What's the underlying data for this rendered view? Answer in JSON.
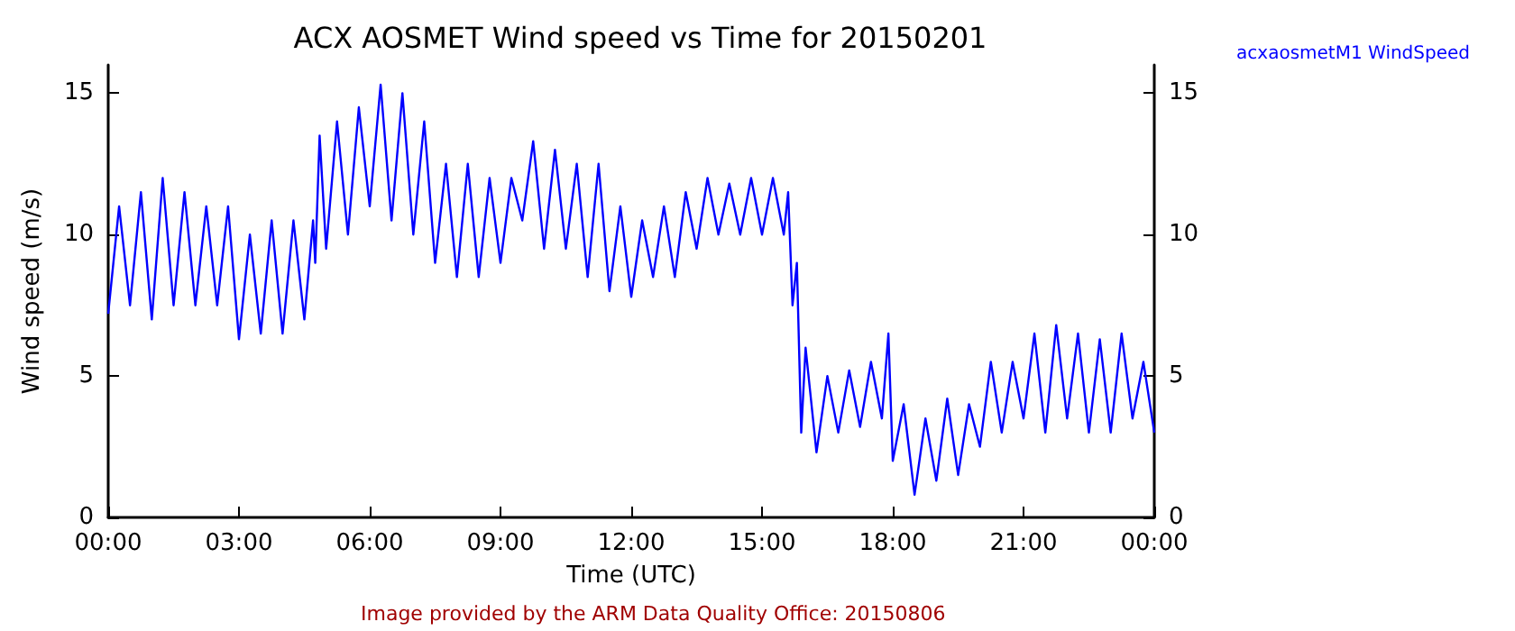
{
  "chart_data": {
    "type": "line",
    "title": "ACX AOSMET Wind speed vs Time for 20150201",
    "xlabel": "Time (UTC)",
    "ylabel": "Wind speed (m/s)",
    "annotations": [
      "Image provided by the ARM Data Quality Office: 20150806"
    ],
    "xlim": [
      0,
      24
    ],
    "xticks": [
      {
        "value": 0,
        "label": "00:00"
      },
      {
        "value": 3,
        "label": "03:00"
      },
      {
        "value": 6,
        "label": "06:00"
      },
      {
        "value": 9,
        "label": "09:00"
      },
      {
        "value": 12,
        "label": "12:00"
      },
      {
        "value": 15,
        "label": "15:00"
      },
      {
        "value": 18,
        "label": "18:00"
      },
      {
        "value": 21,
        "label": "21:00"
      },
      {
        "value": 24,
        "label": "00:00"
      }
    ],
    "ylim": [
      0,
      16
    ],
    "yticks": [
      0,
      5,
      10,
      15
    ],
    "y2lim": [
      0,
      16
    ],
    "y2ticks": [
      0,
      5,
      10,
      15
    ],
    "grid": false,
    "legend": "top right",
    "marker": "none",
    "line_style": "solid",
    "series": [
      {
        "name": "acxaosmetM1 WindSpeed",
        "color": "#0000ff",
        "x": [
          0,
          0.25,
          0.5,
          0.75,
          1,
          1.25,
          1.5,
          1.75,
          2,
          2.25,
          2.5,
          2.75,
          3,
          3.25,
          3.5,
          3.75,
          4,
          4.25,
          4.5,
          4.7,
          4.75,
          4.85,
          5,
          5.25,
          5.5,
          5.75,
          6,
          6.25,
          6.5,
          6.75,
          7,
          7.25,
          7.5,
          7.75,
          8,
          8.25,
          8.5,
          8.75,
          9,
          9.25,
          9.5,
          9.75,
          10,
          10.25,
          10.5,
          10.75,
          11,
          11.25,
          11.5,
          11.75,
          12,
          12.25,
          12.5,
          12.75,
          13,
          13.25,
          13.5,
          13.75,
          14,
          14.25,
          14.5,
          14.75,
          15,
          15.25,
          15.5,
          15.6,
          15.7,
          15.8,
          15.9,
          16,
          16.25,
          16.5,
          16.75,
          17,
          17.25,
          17.5,
          17.75,
          17.9,
          18,
          18.25,
          18.5,
          18.75,
          19,
          19.25,
          19.5,
          19.75,
          20,
          20.25,
          20.5,
          20.75,
          21,
          21.25,
          21.5,
          21.75,
          22,
          22.25,
          22.5,
          22.75,
          23,
          23.25,
          23.5,
          23.75,
          24
        ],
        "values": [
          7.2,
          11,
          7.5,
          11.5,
          7,
          12,
          7.5,
          11.5,
          7.5,
          11,
          7.5,
          11,
          6.3,
          10,
          6.5,
          10.5,
          6.5,
          10.5,
          7,
          10.5,
          9,
          13.5,
          9.5,
          14,
          10,
          14.5,
          11,
          15.3,
          10.5,
          15,
          10,
          14,
          9,
          12.5,
          8.5,
          12.5,
          8.5,
          12,
          9,
          12,
          10.5,
          13.3,
          9.5,
          13,
          9.5,
          12.5,
          8.5,
          12.5,
          8,
          11,
          7.8,
          10.5,
          8.5,
          11,
          8.5,
          11.5,
          9.5,
          12,
          10,
          11.8,
          10,
          12,
          10,
          12,
          10,
          11.5,
          7.5,
          9,
          3,
          6,
          2.3,
          5,
          3,
          5.2,
          3.2,
          5.5,
          3.5,
          6.5,
          2,
          4,
          0.8,
          3.5,
          1.3,
          4.2,
          1.5,
          4,
          2.5,
          5.5,
          3,
          5.5,
          3.5,
          6.5,
          3,
          6.8,
          3.5,
          6.5,
          3,
          6.3,
          3,
          6.5,
          3.5,
          5.5,
          3
        ]
      }
    ]
  }
}
